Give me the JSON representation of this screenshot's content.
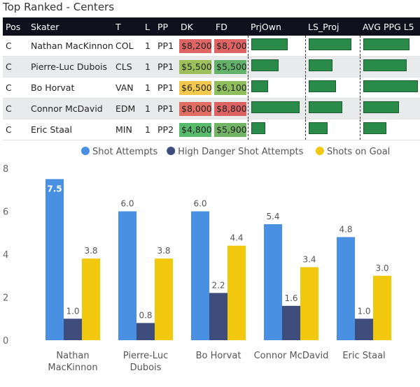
{
  "title": "Top Ranked - Centers",
  "table": {
    "columns": [
      "Pos",
      "Skater",
      "T",
      "L",
      "PP",
      "DK",
      "FD",
      "PrjOwn",
      "LS_Proj",
      "AVG PPG L5"
    ],
    "rows": [
      {
        "pos": "C",
        "skater": "Nathan MacKinnon",
        "team": "COL",
        "line": "1",
        "pp": "PP1",
        "dk": "$8,200",
        "fd": "$8,700",
        "dk_color": "#e06666",
        "fd_color": "#de6464",
        "prjown": 0.7,
        "ls_proj": 0.87,
        "avgppg": 0.85
      },
      {
        "pos": "C",
        "skater": "Pierre-Luc Dubois",
        "team": "CLS",
        "line": "1",
        "pp": "PP1",
        "dk": "$5,500",
        "fd": "$5,500",
        "dk_color": "#9dc05a",
        "fd_color": "#63b26a",
        "prjown": 0.53,
        "ls_proj": 0.48,
        "avgppg": 0.8
      },
      {
        "pos": "C",
        "skater": "Bo Horvat",
        "team": "VAN",
        "line": "1",
        "pp": "PP1",
        "dk": "$6,500",
        "fd": "$6,100",
        "dk_color": "#f2c94c",
        "fd_color": "#8fbe5e",
        "prjown": 0.33,
        "ls_proj": 0.55,
        "avgppg": 1.0
      },
      {
        "pos": "C",
        "skater": "Connor McDavid",
        "team": "EDM",
        "line": "1",
        "pp": "PP1",
        "dk": "$8,000",
        "fd": "$8,800",
        "dk_color": "#e16d62",
        "fd_color": "#dd6262",
        "prjown": 0.93,
        "ls_proj": 0.68,
        "avgppg": 0.66
      },
      {
        "pos": "C",
        "skater": "Eric Staal",
        "team": "MIN",
        "line": "1",
        "pp": "PP2",
        "dk": "$4,800",
        "fd": "$5,900",
        "dk_color": "#57bb6b",
        "fd_color": "#72b465",
        "prjown": 0.27,
        "ls_proj": 0.38,
        "avgppg": 0.42
      }
    ]
  },
  "chart_data": {
    "type": "bar",
    "categories": [
      "Nathan MacKinnon",
      "Pierre-Luc Dubois",
      "Bo Horvat",
      "Connor McDavid",
      "Eric Staal"
    ],
    "category_lines": [
      [
        "Nathan",
        "MacKinnon"
      ],
      [
        "Pierre-Luc",
        "Dubois"
      ],
      [
        "Bo Horvat"
      ],
      [
        "Connor McDavid"
      ],
      [
        "Eric Staal"
      ]
    ],
    "series": [
      {
        "name": "Shot Attempts",
        "color": "#4a90e2",
        "values": [
          7.5,
          6.0,
          6.0,
          5.4,
          4.8
        ],
        "labels": [
          "7.5",
          "6.0",
          "6.0",
          "5.4",
          "4.8"
        ]
      },
      {
        "name": "High Danger Shot Attempts",
        "color": "#3f4d7c",
        "values": [
          1.0,
          0.8,
          2.2,
          1.6,
          1.0
        ],
        "labels": [
          "1.0",
          "0.8",
          "2.2",
          "1.6",
          "1.0"
        ]
      },
      {
        "name": "Shots on Goal",
        "color": "#f2c80f",
        "values": [
          3.8,
          3.8,
          4.4,
          3.4,
          3.0
        ],
        "labels": [
          "3.8",
          "3.8",
          "4.4",
          "3.4",
          "3.0"
        ]
      }
    ],
    "ylim": [
      0,
      8
    ],
    "yticks": [
      "0",
      "2",
      "4",
      "6",
      "8"
    ],
    "legend": "top-center",
    "grid": false
  }
}
